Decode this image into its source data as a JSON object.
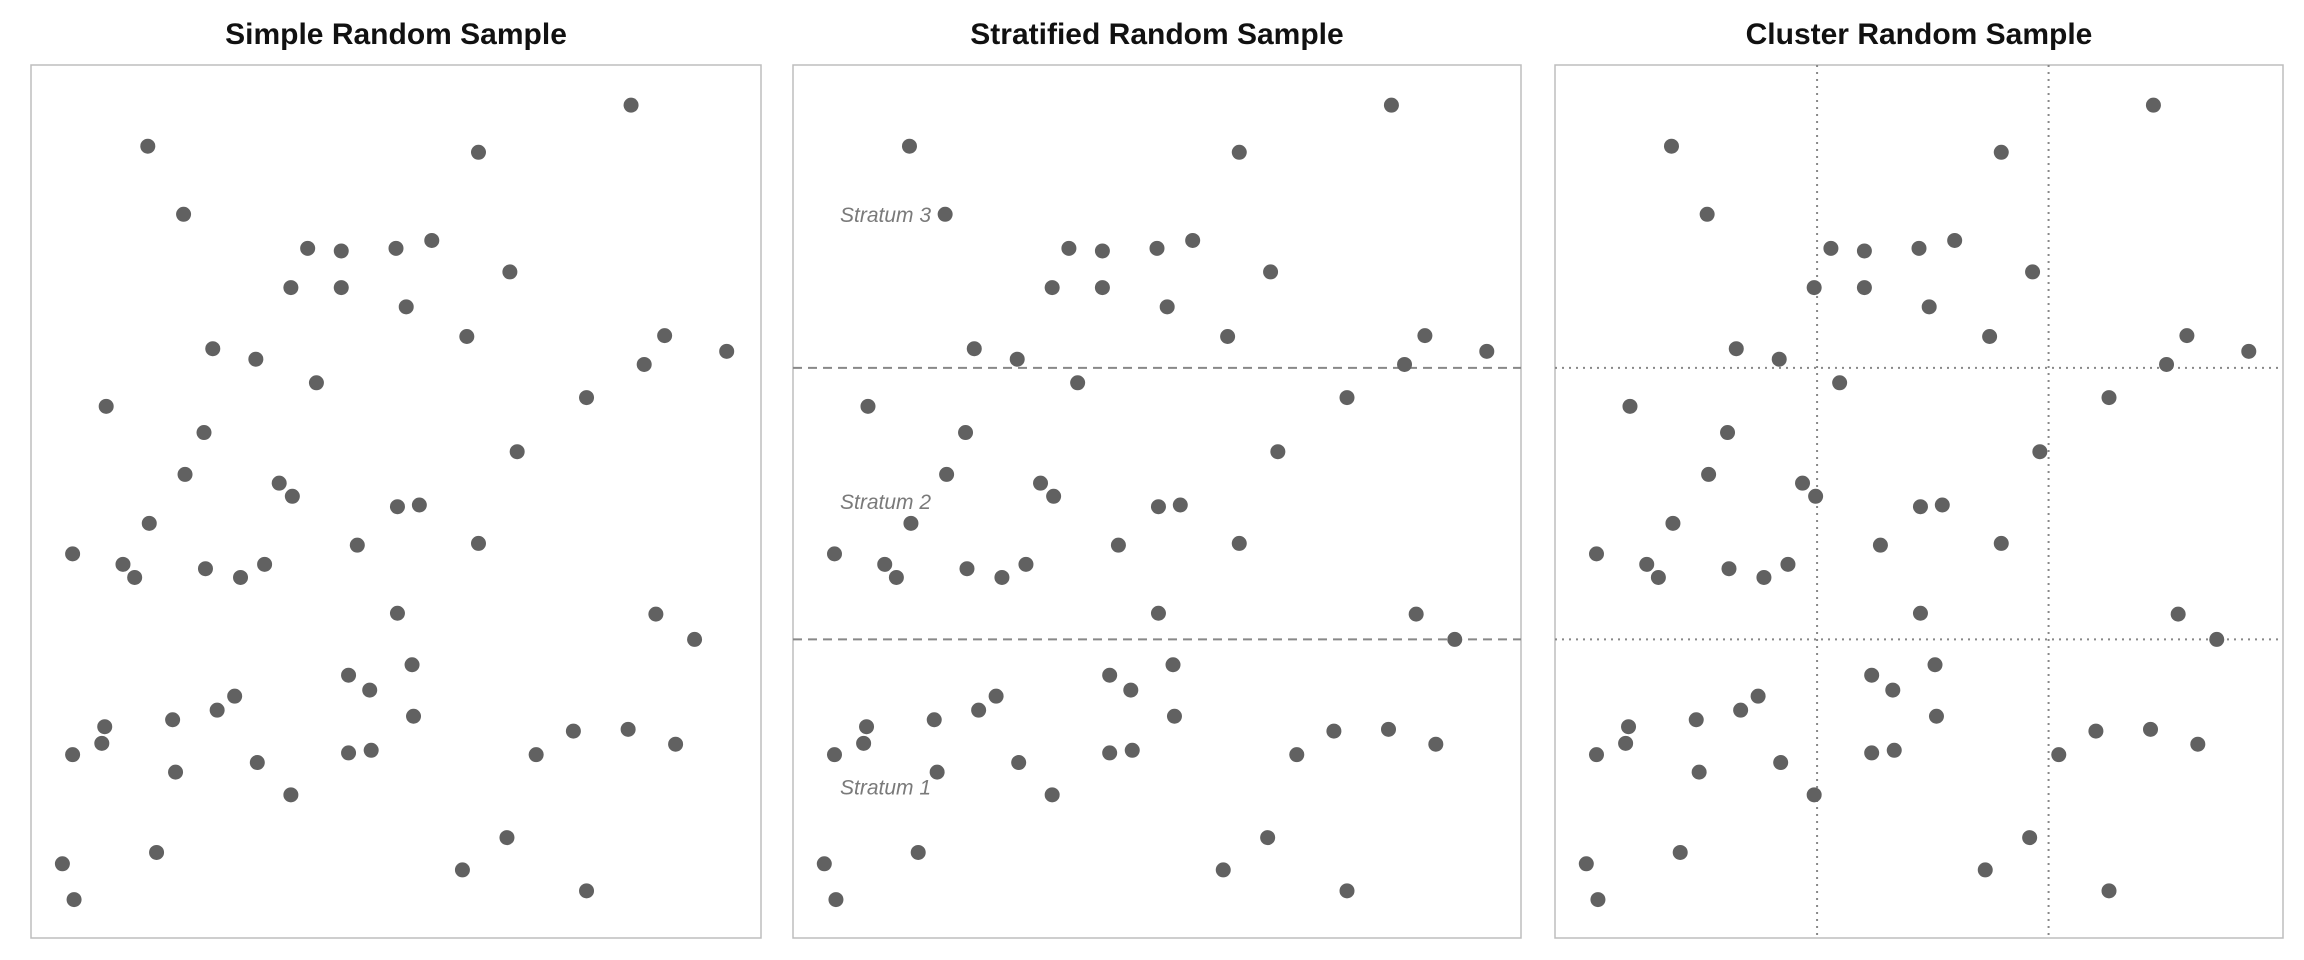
{
  "chart_data": [
    {
      "type": "scatter",
      "title": "Simple Random Sample",
      "color": "#616161",
      "xlim": [
        0,
        100
      ],
      "ylim": [
        0,
        100
      ],
      "x": [
        82.2,
        16.0,
        61.3,
        20.9,
        37.9,
        42.5,
        50.0,
        54.9,
        65.6,
        35.6,
        42.5,
        51.4,
        59.7,
        24.9,
        30.8,
        86.8,
        84.0,
        95.3,
        39.1,
        10.3,
        76.1,
        23.7,
        66.6,
        21.1,
        34.0,
        35.8,
        50.2,
        53.2,
        16.2,
        61.3,
        5.7,
        44.7,
        12.6,
        14.2,
        23.9,
        28.7,
        32.0,
        85.6,
        50.2,
        90.9,
        52.2,
        43.5,
        46.4,
        27.9,
        25.5,
        19.4,
        10.1,
        9.7,
        52.4,
        74.3,
        81.8,
        5.7,
        31.0,
        43.5,
        46.6,
        69.2,
        88.3,
        19.8,
        35.6,
        65.2,
        17.2,
        4.3,
        59.1,
        76.1,
        5.9
      ],
      "y": [
        95.4,
        90.7,
        90.0,
        82.9,
        79.0,
        78.7,
        79.0,
        79.9,
        76.3,
        74.5,
        74.5,
        72.3,
        68.9,
        67.5,
        66.3,
        69.0,
        65.7,
        67.2,
        63.6,
        60.9,
        61.9,
        57.9,
        55.7,
        53.1,
        52.1,
        50.6,
        49.4,
        49.6,
        47.5,
        45.2,
        44.0,
        45.0,
        42.8,
        41.3,
        42.3,
        41.3,
        42.8,
        37.1,
        37.2,
        34.2,
        31.3,
        30.1,
        28.4,
        27.7,
        26.1,
        25.0,
        24.2,
        22.3,
        25.4,
        23.7,
        23.9,
        21.0,
        20.1,
        21.2,
        21.5,
        21.0,
        22.2,
        19.0,
        16.4,
        11.5,
        9.8,
        8.5,
        7.8,
        5.4,
        4.4
      ]
    },
    {
      "type": "scatter",
      "title": "Stratified Random Sample",
      "color": "#616161",
      "xlim": [
        0,
        100
      ],
      "ylim": [
        0,
        100
      ],
      "hlines": [
        34.2,
        65.3
      ],
      "line_style": "dashed",
      "annotations": [
        "Stratum 1",
        "Stratum 2",
        "Stratum 3"
      ],
      "x": [
        82.2,
        16.0,
        61.3,
        20.9,
        37.9,
        42.5,
        50.0,
        54.9,
        65.6,
        35.6,
        42.5,
        51.4,
        59.7,
        24.9,
        30.8,
        86.8,
        84.0,
        95.3,
        39.1,
        10.3,
        76.1,
        23.7,
        66.6,
        21.1,
        34.0,
        35.8,
        50.2,
        53.2,
        16.2,
        61.3,
        5.7,
        44.7,
        12.6,
        14.2,
        23.9,
        28.7,
        32.0,
        85.6,
        50.2,
        90.9,
        52.2,
        43.5,
        46.4,
        27.9,
        25.5,
        19.4,
        10.1,
        9.7,
        52.4,
        74.3,
        81.8,
        5.7,
        31.0,
        43.5,
        46.6,
        69.2,
        88.3,
        19.8,
        35.6,
        65.2,
        17.2,
        4.3,
        59.1,
        76.1,
        5.9
      ],
      "y": [
        95.4,
        90.7,
        90.0,
        82.9,
        79.0,
        78.7,
        79.0,
        79.9,
        76.3,
        74.5,
        74.5,
        72.3,
        68.9,
        67.5,
        66.3,
        69.0,
        65.7,
        67.2,
        63.6,
        60.9,
        61.9,
        57.9,
        55.7,
        53.1,
        52.1,
        50.6,
        49.4,
        49.6,
        47.5,
        45.2,
        44.0,
        45.0,
        42.8,
        41.3,
        42.3,
        41.3,
        42.8,
        37.1,
        37.2,
        34.2,
        31.3,
        30.1,
        28.4,
        27.7,
        26.1,
        25.0,
        24.2,
        22.3,
        25.4,
        23.7,
        23.9,
        21.0,
        20.1,
        21.2,
        21.5,
        21.0,
        22.2,
        19.0,
        16.4,
        11.5,
        9.8,
        8.5,
        7.8,
        5.4,
        4.4
      ]
    },
    {
      "type": "scatter",
      "title": "Cluster Random Sample",
      "color": "#616161",
      "xlim": [
        0,
        100
      ],
      "ylim": [
        0,
        100
      ],
      "hlines": [
        34.2,
        65.3
      ],
      "vlines": [
        36.0,
        67.8
      ],
      "line_style": "dotted",
      "x": [
        82.2,
        16.0,
        61.3,
        20.9,
        37.9,
        42.5,
        50.0,
        54.9,
        65.6,
        35.6,
        42.5,
        51.4,
        59.7,
        24.9,
        30.8,
        86.8,
        84.0,
        95.3,
        39.1,
        10.3,
        76.1,
        23.7,
        66.6,
        21.1,
        34.0,
        35.8,
        50.2,
        53.2,
        16.2,
        61.3,
        5.7,
        44.7,
        12.6,
        14.2,
        23.9,
        28.7,
        32.0,
        85.6,
        50.2,
        90.9,
        52.2,
        43.5,
        46.4,
        27.9,
        25.5,
        19.4,
        10.1,
        9.7,
        52.4,
        74.3,
        81.8,
        5.7,
        31.0,
        43.5,
        46.6,
        69.2,
        88.3,
        19.8,
        35.6,
        65.2,
        17.2,
        4.3,
        59.1,
        76.1,
        5.9
      ],
      "y": [
        95.4,
        90.7,
        90.0,
        82.9,
        79.0,
        78.7,
        79.0,
        79.9,
        76.3,
        74.5,
        74.5,
        72.3,
        68.9,
        67.5,
        66.3,
        69.0,
        65.7,
        67.2,
        63.6,
        60.9,
        61.9,
        57.9,
        55.7,
        53.1,
        52.1,
        50.6,
        49.4,
        49.6,
        47.5,
        45.2,
        44.0,
        45.0,
        42.8,
        41.3,
        42.3,
        41.3,
        42.8,
        37.1,
        37.2,
        34.2,
        31.3,
        30.1,
        28.4,
        27.7,
        26.1,
        25.0,
        24.2,
        22.3,
        25.4,
        23.7,
        23.9,
        21.0,
        20.1,
        21.2,
        21.5,
        21.0,
        22.2,
        19.0,
        16.4,
        11.5,
        9.8,
        8.5,
        7.8,
        5.4,
        4.4
      ]
    }
  ]
}
